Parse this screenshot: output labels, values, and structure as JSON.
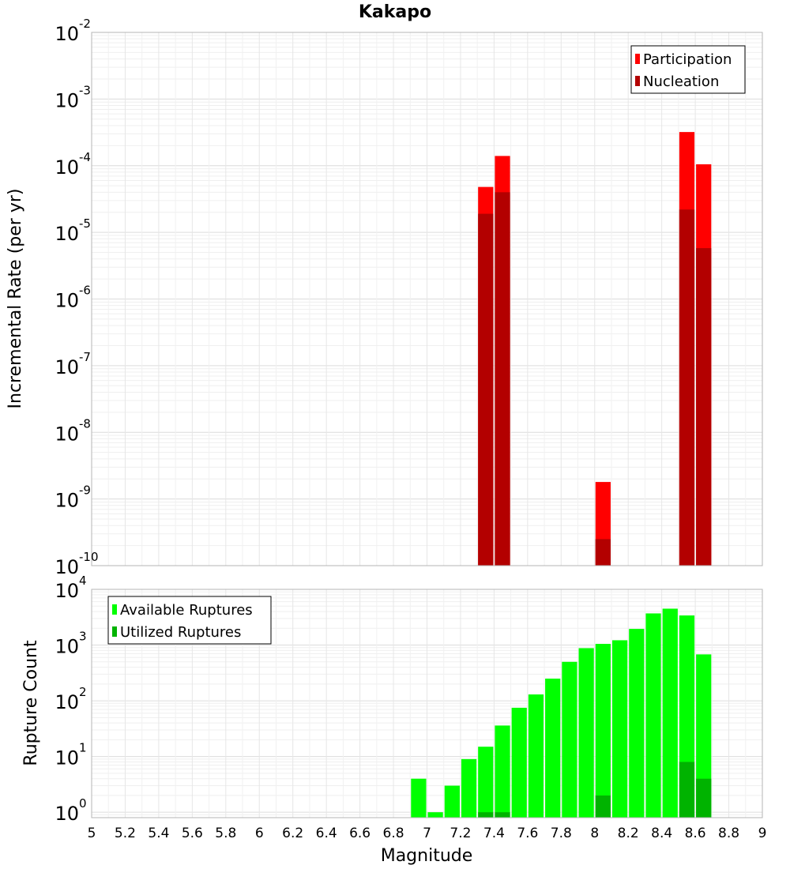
{
  "chart_data": [
    {
      "type": "bar",
      "title": "Kakapo",
      "xlabel": "",
      "ylabel": "Incremental Rate (per yr)",
      "yscale": "log",
      "ylim": [
        1e-10,
        0.01
      ],
      "xlim": [
        5,
        9
      ],
      "bin_width": 0.1,
      "y_ticks": [
        {
          "base": "10",
          "exp": "-10"
        },
        {
          "base": "10",
          "exp": "-9"
        },
        {
          "base": "10",
          "exp": "-8"
        },
        {
          "base": "10",
          "exp": "-7"
        },
        {
          "base": "10",
          "exp": "-6"
        },
        {
          "base": "10",
          "exp": "-5"
        },
        {
          "base": "10",
          "exp": "-4"
        },
        {
          "base": "10",
          "exp": "-3"
        },
        {
          "base": "10",
          "exp": "-2"
        }
      ],
      "legend_position": "top-right",
      "series": [
        {
          "name": "Participation",
          "color": "#ff0000",
          "x": [
            7.35,
            7.45,
            8.05,
            8.55,
            8.65
          ],
          "values": [
            4.8e-05,
            0.00014,
            1.8e-09,
            0.00032,
            0.000105
          ]
        },
        {
          "name": "Nucleation",
          "color": "#b30000",
          "x": [
            7.35,
            7.45,
            8.05,
            8.55,
            8.65
          ],
          "values": [
            1.9e-05,
            4e-05,
            2.5e-10,
            2.2e-05,
            5.8e-06
          ]
        }
      ]
    },
    {
      "type": "bar",
      "title": "",
      "xlabel": "Magnitude",
      "ylabel": "Rupture Count",
      "yscale": "log",
      "ylim": [
        0.8,
        10000
      ],
      "xlim": [
        5,
        9
      ],
      "bin_width": 0.1,
      "y_ticks": [
        {
          "value": 1,
          "base": "10",
          "exp": "0"
        },
        {
          "value": 10,
          "base": "10",
          "exp": "1"
        },
        {
          "value": 100,
          "base": "10",
          "exp": "2"
        },
        {
          "value": 1000,
          "base": "10",
          "exp": "3"
        },
        {
          "value": 10000,
          "base": "10",
          "exp": "4"
        }
      ],
      "x_ticks": [
        "5",
        "5.2",
        "5.4",
        "5.6",
        "5.8",
        "6",
        "6.2",
        "6.4",
        "6.6",
        "6.8",
        "7",
        "7.2",
        "7.4",
        "7.6",
        "7.8",
        "8",
        "8.2",
        "8.4",
        "8.6",
        "8.8",
        "9"
      ],
      "legend_position": "top-left",
      "series": [
        {
          "name": "Available Ruptures",
          "color": "#00ff00",
          "x": [
            6.95,
            7.05,
            7.15,
            7.25,
            7.35,
            7.45,
            7.55,
            7.65,
            7.75,
            7.85,
            7.95,
            8.05,
            8.15,
            8.25,
            8.35,
            8.45,
            8.55,
            8.65
          ],
          "values": [
            4,
            1,
            3,
            9,
            15,
            36,
            75,
            130,
            250,
            500,
            880,
            1050,
            1220,
            1950,
            3700,
            4500,
            3400,
            680
          ]
        },
        {
          "name": "Utilized Ruptures",
          "color": "#00b300",
          "x": [
            7.35,
            7.45,
            8.05,
            8.55,
            8.65
          ],
          "values": [
            1,
            1,
            2,
            8,
            4
          ]
        }
      ]
    }
  ]
}
